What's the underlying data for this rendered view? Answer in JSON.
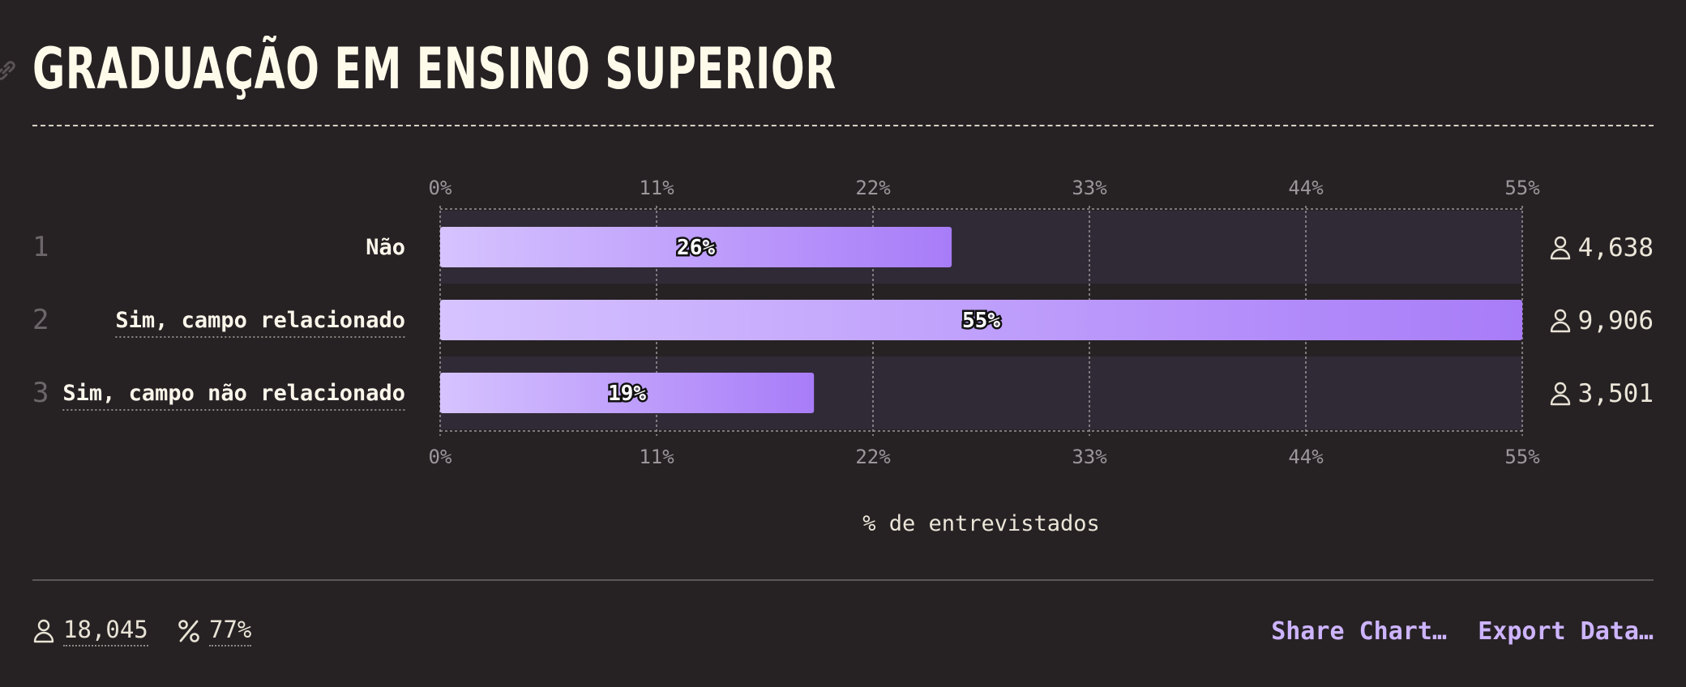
{
  "title": "GRADUAÇÃO EM ENSINO SUPERIOR",
  "chart_data": {
    "type": "bar",
    "orientation": "horizontal",
    "categories": [
      "Não",
      "Sim, campo relacionado",
      "Sim, campo não relacionado"
    ],
    "ranks": [
      "1",
      "2",
      "3"
    ],
    "values": [
      26,
      55,
      19
    ],
    "value_labels": [
      "26%",
      "55%",
      "19%"
    ],
    "counts": [
      "4,638",
      "9,906",
      "3,501"
    ],
    "xticks": [
      "0%",
      "11%",
      "22%",
      "33%",
      "44%",
      "55%"
    ],
    "xlim": [
      0,
      55
    ],
    "xlabel": "% de entrevistados",
    "grid": true
  },
  "footer": {
    "respondents": "18,045",
    "completion": "77%",
    "share_label": "Share Chart…",
    "export_label": "Export Data…"
  },
  "colors": {
    "background": "#262224",
    "track": "#302a36",
    "bar_start": "#d6c3ff",
    "bar_end": "#a87cf8",
    "accent": "#cdb4ff"
  }
}
